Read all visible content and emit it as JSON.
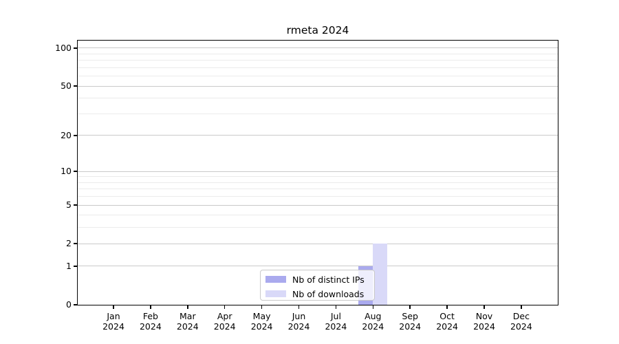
{
  "title": "rmeta 2024",
  "chart_data": {
    "type": "bar",
    "title": "rmeta 2024",
    "categories": [
      "Jan 2024",
      "Feb 2024",
      "Mar 2024",
      "Apr 2024",
      "May 2024",
      "Jun 2024",
      "Jul 2024",
      "Aug 2024",
      "Sep 2024",
      "Oct 2024",
      "Nov 2024",
      "Dec 2024"
    ],
    "x_tick_month": [
      "Jan",
      "Feb",
      "Mar",
      "Apr",
      "May",
      "Jun",
      "Jul",
      "Aug",
      "Sep",
      "Oct",
      "Nov",
      "Dec"
    ],
    "x_tick_year": "2024",
    "series": [
      {
        "name": "Nb of distinct IPs",
        "color": "#aaaaee",
        "values": [
          0,
          0,
          0,
          0,
          0,
          0,
          0,
          1,
          0,
          0,
          0,
          0
        ]
      },
      {
        "name": "Nb of downloads",
        "color": "#d9d9f8",
        "values": [
          0,
          0,
          0,
          0,
          0,
          0,
          0,
          2,
          0,
          0,
          0,
          0
        ]
      }
    ],
    "xlabel": "",
    "ylabel": "",
    "y_axis": {
      "scale": "log10(1+value)",
      "major_ticks": [
        0,
        1,
        2,
        5,
        10,
        20,
        50,
        100
      ],
      "major_tick_labels": [
        "0",
        "1",
        "2",
        "5",
        "10",
        "20",
        "50",
        "100"
      ],
      "minor_gridlines": [
        3,
        4,
        6,
        7,
        8,
        9,
        30,
        40,
        60,
        70,
        80,
        90
      ],
      "ylim": [
        0,
        115
      ]
    },
    "grid": {
      "show": true,
      "major_color": "#c9c9c9",
      "minor_color": "#ebebeb"
    },
    "legend": {
      "position": "lower-center-inside",
      "border_color": "#c9c9c9"
    },
    "colors": {
      "spine": "#000000",
      "text": "#000000",
      "background": "#ffffff"
    }
  }
}
